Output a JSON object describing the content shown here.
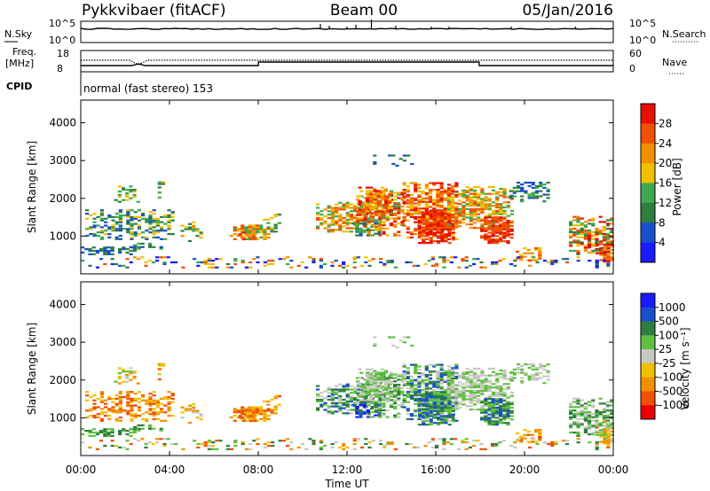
{
  "header": {
    "station": "Pykkvibaer (fitACF)",
    "beam": "Beam 00",
    "date": "05/Jan/2016"
  },
  "noise_panel": {
    "left_label": "N.Sky",
    "right_label": "N.Search",
    "left_ticks": [
      "10^5",
      "10^0"
    ],
    "right_ticks": [
      "10^5",
      "10^0"
    ]
  },
  "freq_panel": {
    "left_label_1": "Freq.",
    "left_label_2": "[MHz]",
    "right_label": "Nave",
    "left_ticks": [
      "18",
      "8"
    ],
    "right_ticks": [
      "60",
      "0"
    ]
  },
  "cpid": {
    "label": "CPID",
    "text": "normal (fast stereo) 153"
  },
  "colors": {
    "power": [
      "#1a1aff",
      "#1a4fcc",
      "#2e7f3f",
      "#40a850",
      "#f0c000",
      "#f39000",
      "#f05000",
      "#e81000"
    ],
    "velocity": [
      "#e80000",
      "#f05000",
      "#f39000",
      "#f0c000",
      "#c8c8c0",
      "#60c040",
      "#2e7f3f",
      "#1a4fcc",
      "#1a1aff"
    ]
  },
  "chart_data": [
    {
      "type": "heatmap",
      "parameter": "power",
      "ylabel": "Slant Range [km]",
      "yticks": [
        "1000",
        "2000",
        "3000",
        "4000"
      ],
      "ylim": [
        0,
        4600
      ],
      "xlim": [
        "00:00",
        "24:00"
      ],
      "colorbar": {
        "label": "Power [dB]",
        "ticks": [
          "4",
          "8",
          "12",
          "16",
          "20",
          "24",
          "28"
        ],
        "range": [
          0,
          32
        ]
      }
    },
    {
      "type": "heatmap",
      "parameter": "velocity",
      "ylabel": "Slant Range [km]",
      "yticks": [
        "1000",
        "2000",
        "3000",
        "4000"
      ],
      "ylim": [
        0,
        4600
      ],
      "xlabel": "Time UT",
      "xticks": [
        "00:00",
        "04:00",
        "08:00",
        "12:00",
        "16:00",
        "20:00",
        "00:00"
      ],
      "xlim": [
        "00:00",
        "24:00"
      ],
      "colorbar": {
        "label": "Velocity [m s⁻¹]",
        "ticks": [
          "1000",
          "500",
          "100",
          "25",
          "-25",
          "-100",
          "-500",
          "-1000"
        ]
      }
    }
  ]
}
